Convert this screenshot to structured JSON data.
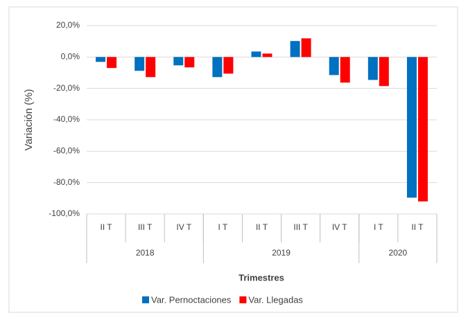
{
  "chart_data": {
    "type": "bar",
    "y_label": "Variación (%)",
    "x_label": "Trimestres",
    "categories": [
      "II T",
      "III T",
      "IV T",
      "I T",
      "II T",
      "III T",
      "IV T",
      "I T",
      "II T"
    ],
    "groups": [
      {
        "label": "2018",
        "span": 3
      },
      {
        "label": "2019",
        "span": 4
      },
      {
        "label": "2020",
        "span": 2
      }
    ],
    "series": [
      {
        "name": "Var. Pernoctaciones",
        "color": "#0070c0",
        "values": [
          -3.1,
          -8.8,
          -5.3,
          -12.8,
          3.5,
          10.2,
          -11.5,
          -14.6,
          -89.6
        ]
      },
      {
        "name": "Var. Llegadas",
        "color": "#ff0000",
        "values": [
          -7.0,
          -12.8,
          -6.6,
          -10.6,
          2.2,
          11.9,
          -16.3,
          -18.5,
          -92.0
        ]
      }
    ],
    "ylim": [
      -100,
      20
    ],
    "yticks": [
      {
        "value": -100,
        "label": "-100,0%"
      },
      {
        "value": -80,
        "label": "-80,0%"
      },
      {
        "value": -60,
        "label": "-60,0%"
      },
      {
        "value": -40,
        "label": "-40,0%"
      },
      {
        "value": -20,
        "label": "-20,0%"
      },
      {
        "value": 0,
        "label": "0,0%"
      },
      {
        "value": 20,
        "label": "20,0%"
      }
    ],
    "grid": true,
    "legend": "bottom"
  }
}
